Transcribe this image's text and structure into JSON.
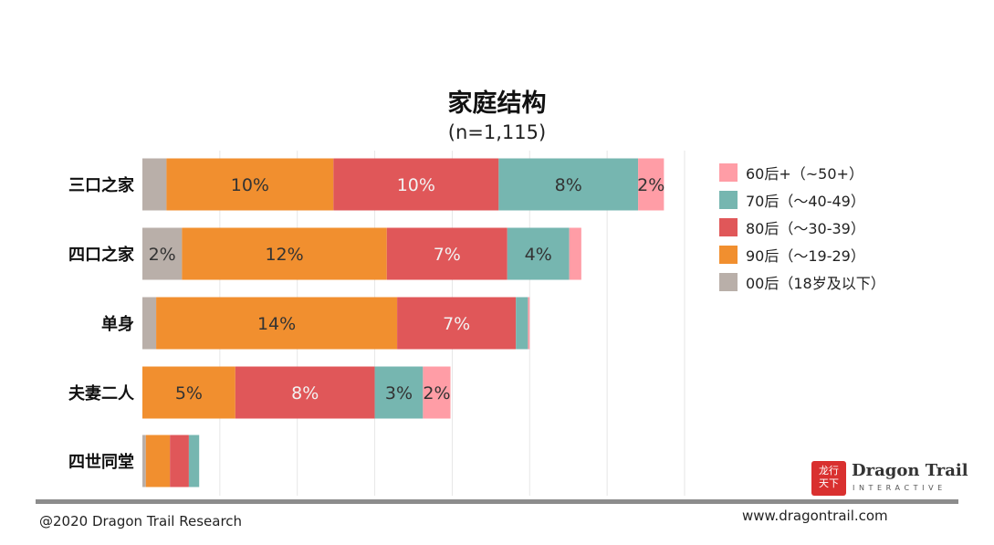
{
  "chart_data": {
    "type": "bar",
    "orientation": "horizontal",
    "stacked": true,
    "title": "家庭结构",
    "subtitle": "(n=1,115)",
    "categories": [
      "三口之家",
      "四口之家",
      "单身",
      "夫妻二人",
      "四世同堂"
    ],
    "series": [
      {
        "name": "00后（18岁及以下）",
        "color": "#b9afa9",
        "values": [
          1.4,
          2.3,
          0.8,
          0,
          0.2
        ],
        "labels": [
          "",
          "2%",
          "",
          "",
          ""
        ]
      },
      {
        "name": "90后（～19-29）",
        "color": "#f18f2f",
        "values": [
          9.7,
          11.9,
          14.0,
          5.4,
          1.4
        ],
        "labels": [
          "10%",
          "12%",
          "14%",
          "5%",
          ""
        ]
      },
      {
        "name": "80后（～30-39）",
        "color": "#e05759",
        "values": [
          9.6,
          7.0,
          6.9,
          8.1,
          1.1
        ],
        "labels": [
          "10%",
          "7%",
          "7%",
          "8%",
          ""
        ]
      },
      {
        "name": "70后（～40-49）",
        "color": "#76b6b0",
        "values": [
          8.1,
          3.6,
          0.7,
          2.8,
          0.6
        ],
        "labels": [
          "8%",
          "4%",
          "",
          "3%",
          ""
        ]
      },
      {
        "name": "60后+（~50+）",
        "color": "#ff9da6",
        "values": [
          1.5,
          0.7,
          0.1,
          1.6,
          0
        ],
        "labels": [
          "2%",
          "",
          "",
          "2%",
          ""
        ]
      }
    ],
    "legend_order": [
      4,
      3,
      2,
      1,
      0
    ],
    "xlim": [
      0,
      31.5
    ],
    "gridlines": [
      4.5,
      9,
      13.5,
      18,
      22.5,
      27,
      31.5
    ],
    "legend_position": "right"
  },
  "brand": {
    "mark": "龙行天下",
    "name": "Dragon Trail",
    "sub": "INTERACTIVE"
  },
  "footer": {
    "copyright": "@2020 Dragon Trail Research",
    "website": "www.dragontrail.com"
  }
}
